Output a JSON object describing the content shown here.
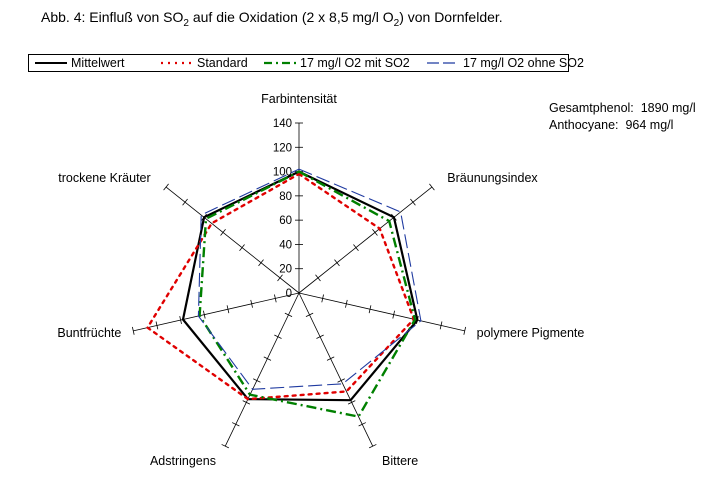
{
  "header": {
    "prefix": "Abb. 4:  Einfluß von SO",
    "sub1": "2",
    "middle": " auf die Oxidation (2 x 8,5 mg/l O",
    "sub2": "2",
    "suffix": ") von Dornfelder."
  },
  "info": {
    "phenol_label": "Gesamtphenol:",
    "phenol_value": "1890 mg/l",
    "anthocyane_label": "Anthocyane:",
    "anthocyane_value": "964 mg/l"
  },
  "chart_data": {
    "type": "radar",
    "axes": [
      "Farbintensität",
      "Bräunungsindex",
      "polymere Pigmente",
      "Bittere",
      "Adstringens",
      "Buntfrüchte",
      "trockene Kräuter"
    ],
    "rlim": [
      0,
      140
    ],
    "ticks": [
      "0",
      "20",
      "40",
      "60",
      "80",
      "100",
      "120",
      "140"
    ],
    "tick_values": [
      0,
      20,
      40,
      60,
      80,
      100,
      120,
      140
    ],
    "series": [
      {
        "name": "Mittelwert",
        "color": "#000000",
        "style": "solid",
        "values": [
          100,
          100,
          100,
          98,
          97,
          98,
          100
        ]
      },
      {
        "name": "Standard",
        "color": "#e00000",
        "style": "dotted",
        "values": [
          98,
          85,
          97,
          90,
          97,
          128,
          92
        ]
      },
      {
        "name": "17 mg/l O2 mit SO2",
        "color": "#008000",
        "style": "dashdot",
        "values": [
          100,
          95,
          98,
          113,
          93,
          84,
          98
        ]
      },
      {
        "name": "17 mg/l O2 ohne SO2",
        "color": "#1f3aa0",
        "style": "longdash",
        "values": [
          102,
          107,
          103,
          83,
          88,
          85,
          103
        ]
      }
    ]
  }
}
